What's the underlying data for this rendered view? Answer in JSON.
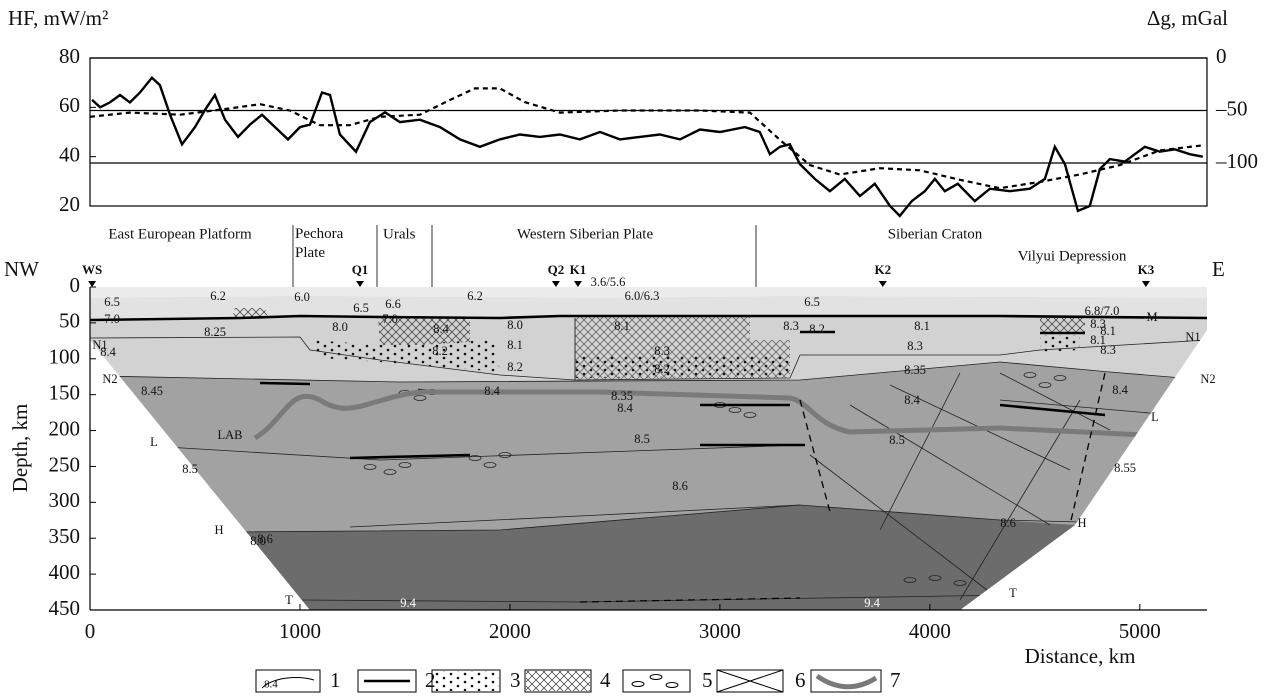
{
  "chart_data": [
    {
      "type": "line",
      "y_label": "HF, mW/m²",
      "y2_label": "Δg, mGal",
      "xlim": [
        0,
        5320
      ],
      "ylim": [
        20,
        80
      ],
      "yticks": [
        20,
        40,
        60,
        80
      ],
      "y2lim": [
        -141,
        0
      ],
      "y2ticks": [
        {
          "value": -100,
          "label": "–100"
        },
        {
          "value": -50,
          "label": "–50"
        },
        0
      ],
      "grid": "y2",
      "regions": [
        "East European Platform",
        "Pechora Plate",
        "Urals",
        "Western Siberian Plate",
        "Siberian Craton",
        "Vilyui Depression"
      ],
      "series": [
        {
          "color": "#000000",
          "dash": false,
          "x": [
            10,
            48,
            95,
            143,
            190,
            238,
            295,
            333,
            381,
            438,
            500,
            548,
            595,
            643,
            705,
            762,
            819,
            881,
            943,
            1000,
            1048,
            1105,
            1143,
            1190,
            1267,
            1333,
            1405,
            1476,
            1571,
            1667,
            1762,
            1857,
            1952,
            2048,
            2143,
            2238,
            2333,
            2429,
            2524,
            2619,
            2714,
            2810,
            2905,
            3000,
            3119,
            3190,
            3238,
            3286,
            3333,
            3381,
            3452,
            3524,
            3595,
            3667,
            3738,
            3810,
            3857,
            3914,
            3976,
            4024,
            4071,
            4133,
            4214,
            4286,
            4381,
            4476,
            4548,
            4595,
            4643,
            4705,
            4762,
            4810,
            4857,
            4929,
            4976,
            5024,
            5095,
            5167,
            5238,
            5300
          ],
          "values": [
            63,
            60,
            62,
            65,
            62,
            66,
            72,
            69,
            57,
            45,
            52,
            59,
            65,
            55,
            48,
            53,
            57,
            52,
            47,
            52,
            53,
            66,
            65,
            49,
            42,
            54,
            58,
            54,
            55,
            52,
            47,
            44,
            47,
            49,
            48,
            49,
            47,
            50,
            47,
            48,
            49,
            47,
            51,
            50,
            52,
            50,
            41,
            44,
            45,
            37,
            31,
            26,
            31,
            24,
            29,
            20,
            16,
            22,
            26,
            31,
            26,
            29,
            22,
            27,
            26,
            27,
            31,
            44,
            37,
            18,
            20,
            35,
            39,
            38,
            41,
            44,
            42,
            43,
            41,
            40
          ]
        },
        {
          "color": "#000000",
          "dash": true,
          "axis": "y2",
          "x": [
            0,
            190,
            429,
            667,
            810,
            952,
            1095,
            1238,
            1381,
            1571,
            1714,
            1833,
            1952,
            2071,
            2238,
            2524,
            2905,
            3143,
            3286,
            3429,
            3571,
            3762,
            3952,
            4143,
            4333,
            4524,
            4714,
            4905,
            5095,
            5310
          ],
          "values": [
            -56,
            -52,
            -54,
            -48,
            -44,
            -50,
            -64,
            -64,
            -56,
            -54,
            -40,
            -29,
            -29,
            -42,
            -52,
            -50,
            -50,
            -52,
            -78,
            -102,
            -111,
            -105,
            -107,
            -116,
            -124,
            -118,
            -111,
            -102,
            -88,
            -83
          ]
        }
      ]
    },
    {
      "type": "section",
      "x_label": "Distance, km",
      "y_label": "Depth, km",
      "xlim": [
        0,
        5320
      ],
      "xticks": [
        0,
        1000,
        2000,
        3000,
        4000,
        5000
      ],
      "ylim": [
        0,
        450
      ],
      "yticks": [
        0,
        50,
        100,
        150,
        200,
        250,
        300,
        350,
        400,
        450
      ],
      "ends": [
        "NW",
        "E"
      ],
      "stations": {
        "labels": [
          "WS",
          "Q1",
          "Q2",
          "K1",
          "K2",
          "K3"
        ],
        "x": [
          10,
          1286,
          2219,
          2324,
          3776,
          5029
        ]
      },
      "labels": [
        "3.6/5.6",
        "6.2",
        "6.0",
        "6.2",
        "6.0/6.3",
        "6.5",
        "6.5",
        "6.6",
        "6.5",
        "7.0",
        "7.0",
        "6.8/7.0",
        "M",
        "8.25",
        "8.0",
        "8.4",
        "8.0",
        "8.1",
        "8.3",
        "8.2",
        "8.1",
        "8.3",
        "8.1",
        "N1",
        "8.4",
        "8.1",
        "8.2",
        "8.3",
        "8.3",
        "8.1",
        "8.3",
        "N1",
        "N2",
        "8.2",
        "8.2",
        "8.35",
        "N2",
        "8.45",
        "8.4",
        "8.35",
        "8.4",
        "8.4",
        "8.4",
        "L",
        "LAB",
        "8.5",
        "8.5",
        "L",
        "8.5",
        "8.55",
        "8.6",
        "H",
        "8.0",
        "8.6",
        "8.6",
        "H",
        "T",
        "9.4",
        "9.4",
        "T"
      ]
    }
  ],
  "legend": {
    "items": [
      "1",
      "2",
      "3",
      "4",
      "5",
      "6",
      "7"
    ],
    "sample_label": "8.4"
  }
}
